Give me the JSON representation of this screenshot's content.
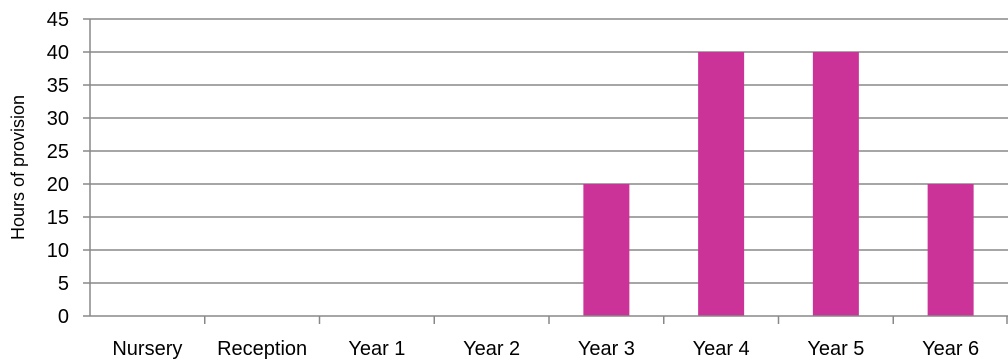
{
  "chart_data": {
    "type": "bar",
    "title": "",
    "xlabel": "",
    "ylabel": "Hours of provision",
    "categories": [
      "Nursery",
      "Reception",
      "Year 1",
      "Year 2",
      "Year 3",
      "Year 4",
      "Year 5",
      "Year 6"
    ],
    "values": [
      0,
      0,
      0,
      0,
      20,
      40,
      40,
      20
    ],
    "ylim": [
      0,
      45
    ],
    "yticks": [
      "0",
      "5",
      "10",
      "15",
      "20",
      "25",
      "30",
      "35",
      "40",
      "45"
    ],
    "grid": true,
    "legend": "none",
    "colors": {
      "bar": "#cc3399",
      "gridline": "#888888",
      "axis": "#888888",
      "text": "#000000"
    }
  }
}
